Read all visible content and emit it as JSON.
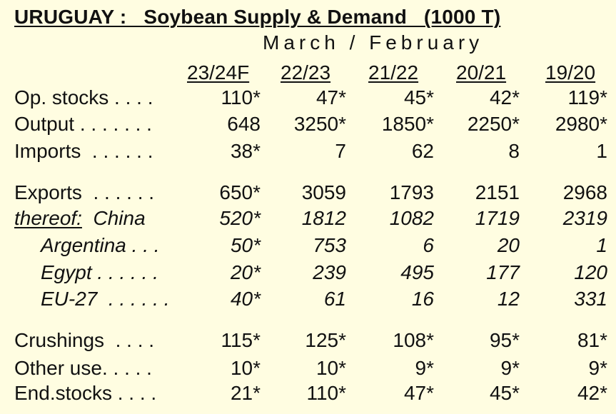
{
  "title": "URUGUAY :   Soybean Supply & Demand   (1000 T)",
  "subtitle": "March / February",
  "columns": [
    "23/24F",
    "22/23",
    "21/22",
    "20/21",
    "19/20"
  ],
  "rows": [
    {
      "label": "Op. stocks . . . .",
      "values": [
        "110*",
        "47*",
        "45*",
        "42*",
        "119*"
      ]
    },
    {
      "label": "Output . . . . . . .",
      "values": [
        "648",
        "3250*",
        "1850*",
        "2250*",
        "2980*"
      ]
    },
    {
      "label": "Imports  . . . . . .",
      "values": [
        "38*",
        "7",
        "62",
        "8",
        "1"
      ]
    },
    {
      "label": "Exports  . . . . . .",
      "values": [
        "650*",
        "3059",
        "1793",
        "2151",
        "2968"
      ]
    },
    {
      "label_prefix": "thereof:",
      "label": "  China",
      "values": [
        "520*",
        "1812",
        "1082",
        "1719",
        "2319"
      ]
    },
    {
      "label": "Argentina . . .",
      "values": [
        "50*",
        "753",
        "6",
        "20",
        "1"
      ]
    },
    {
      "label": "Egypt . . . . . .",
      "values": [
        "20*",
        "239",
        "495",
        "177",
        "120"
      ]
    },
    {
      "label": "EU-27  . . . . . .",
      "values": [
        "40*",
        "61",
        "16",
        "12",
        "331"
      ]
    },
    {
      "label": "Crushings  . . . .",
      "values": [
        "115*",
        "125*",
        "108*",
        "95*",
        "81*"
      ]
    },
    {
      "label": "Other use. . . . .",
      "values": [
        "10*",
        "10*",
        "9*",
        "9*",
        "9*"
      ]
    },
    {
      "label": "End.stocks . . . .",
      "values": [
        "21*",
        "110*",
        "47*",
        "45*",
        "42*"
      ]
    }
  ]
}
